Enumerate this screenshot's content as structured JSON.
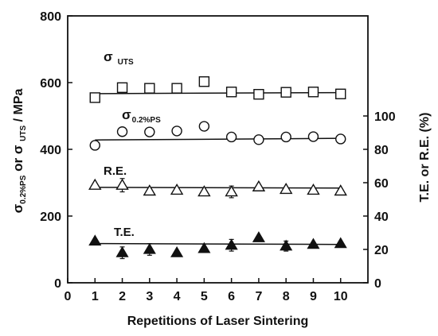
{
  "chart_data": {
    "type": "scatter",
    "xlabel": "Repetitions of Laser Sintering",
    "ylabel_left": {
      "main1": "σ",
      "sub1": "0.2%PS",
      "main2": " or σ ",
      "sub2": "UTS",
      "rest": " / MPa"
    },
    "ylabel_right": "T.E. or R.E.  (%)",
    "xlim": [
      0,
      11
    ],
    "ylim_left": [
      0,
      800
    ],
    "ylim_right": [
      0,
      160
    ],
    "x_ticks": [
      0,
      1,
      2,
      3,
      4,
      5,
      6,
      7,
      8,
      9,
      10
    ],
    "y_left_ticks": [
      0,
      200,
      400,
      600,
      800
    ],
    "y_right_ticks": [
      0,
      20,
      40,
      60,
      80,
      100
    ],
    "series": [
      {
        "label_main": "σ",
        "label_sub": "UTS",
        "axis": "left",
        "marker": "square-open",
        "x": [
          1,
          2,
          3,
          4,
          5,
          6,
          7,
          8,
          9,
          10
        ],
        "y": [
          555,
          585,
          583,
          583,
          603,
          572,
          565,
          571,
          572,
          566
        ],
        "fit": [
          567,
          570
        ],
        "err": [
          0,
          0,
          0,
          0,
          0,
          0,
          0,
          0,
          0,
          0
        ]
      },
      {
        "label_main": "σ",
        "label_sub": "0.2%PS",
        "axis": "left",
        "marker": "circle-open",
        "x": [
          1,
          2,
          3,
          4,
          5,
          6,
          7,
          8,
          9,
          10
        ],
        "y": [
          412,
          453,
          452,
          455,
          469,
          437,
          429,
          437,
          438,
          431
        ],
        "fit": [
          428,
          433
        ],
        "err": [
          0,
          0,
          0,
          0,
          0,
          0,
          0,
          0,
          0,
          0
        ]
      },
      {
        "label_main": "R.E.",
        "label_sub": "",
        "axis": "right",
        "marker": "triangle-open",
        "x": [
          1,
          2,
          3,
          4,
          5,
          6,
          7,
          8,
          9,
          10
        ],
        "y": [
          58.5,
          58.5,
          55,
          55.5,
          54.5,
          54.5,
          57.5,
          56,
          55.5,
          55
        ],
        "fit": [
          57.2,
          56.8
        ],
        "err": [
          0,
          4,
          0,
          0,
          0,
          3.5,
          0,
          0,
          0,
          0
        ]
      },
      {
        "label_main": "T.E.",
        "label_sub": "",
        "axis": "right",
        "marker": "triangle-filled",
        "x": [
          1,
          2,
          3,
          4,
          5,
          6,
          7,
          8,
          9,
          10
        ],
        "y": [
          25,
          18,
          20,
          18,
          20.5,
          22.5,
          27,
          22,
          23,
          23.5
        ],
        "fit": [
          23.5,
          23
        ],
        "err": [
          0,
          3.5,
          3.5,
          0,
          0,
          3.5,
          0,
          3,
          0,
          0
        ]
      }
    ]
  }
}
